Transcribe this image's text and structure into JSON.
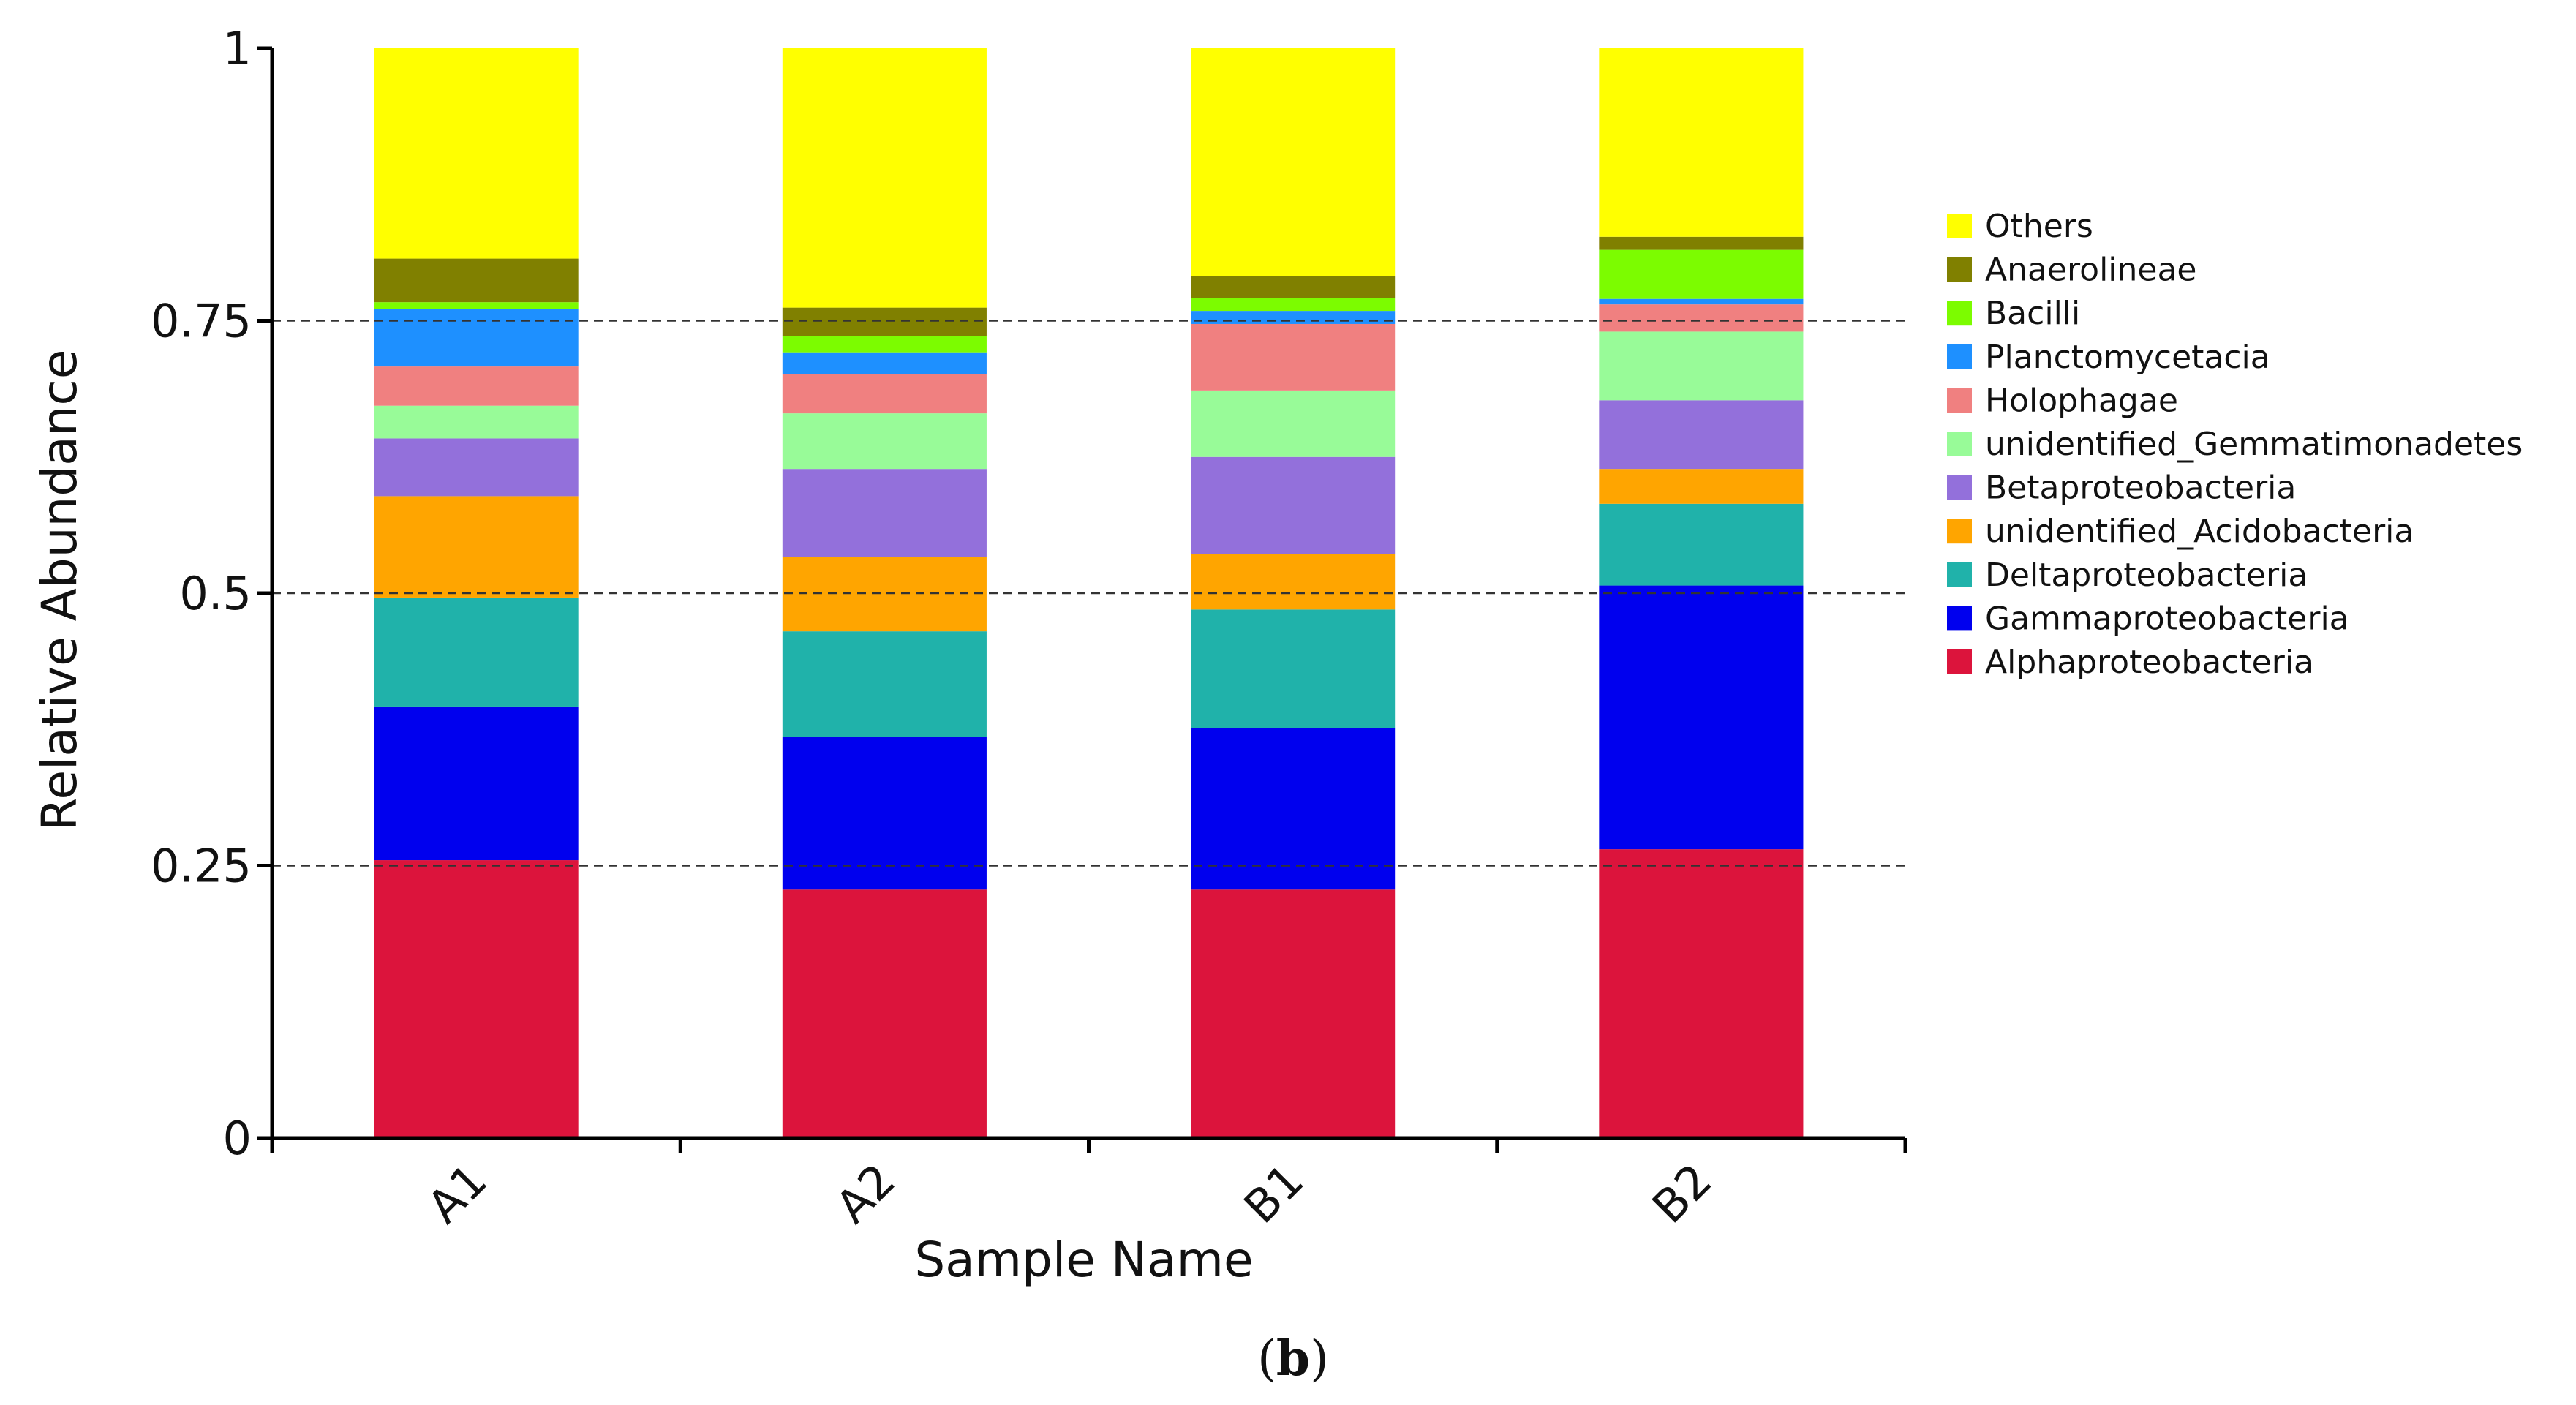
{
  "chart_data": {
    "type": "bar",
    "stacked": true,
    "title": "",
    "xlabel": "Sample Name",
    "ylabel": "Relative Abundance",
    "ylim": [
      0,
      1
    ],
    "yticks": [
      0,
      0.25,
      0.5,
      0.75,
      1
    ],
    "ytick_labels": [
      "0",
      "0.25",
      "0.5",
      "0.75",
      "1"
    ],
    "grid": "dashed horizontal lines at 0.25, 0.5, 0.75",
    "legend_position": "right",
    "categories": [
      "A1",
      "A2",
      "B1",
      "B2"
    ],
    "series": [
      {
        "name": "Alphaproteobacteria",
        "color": "#DC143C",
        "values": [
          0.255,
          0.228,
          0.228,
          0.265
        ]
      },
      {
        "name": "Gammaproteobacteria",
        "color": "#0000EE",
        "values": [
          0.141,
          0.14,
          0.148,
          0.242
        ]
      },
      {
        "name": "Deltaproteobacteria",
        "color": "#20B2AA",
        "values": [
          0.1,
          0.097,
          0.109,
          0.075
        ]
      },
      {
        "name": "unidentified_Acidobacteria",
        "color": "#FFA500",
        "values": [
          0.093,
          0.068,
          0.051,
          0.032
        ]
      },
      {
        "name": "Betaproteobacteria",
        "color": "#9370DB",
        "values": [
          0.053,
          0.081,
          0.089,
          0.063
        ]
      },
      {
        "name": "unidentified_Gemmatimonadetes",
        "color": "#98FB98",
        "values": [
          0.03,
          0.051,
          0.061,
          0.063
        ]
      },
      {
        "name": "Holophagae",
        "color": "#F08080",
        "values": [
          0.036,
          0.036,
          0.061,
          0.025
        ]
      },
      {
        "name": "Planctomycetacia",
        "color": "#1E90FF",
        "values": [
          0.053,
          0.02,
          0.012,
          0.005
        ]
      },
      {
        "name": "Bacilli",
        "color": "#7CFC00",
        "values": [
          0.006,
          0.015,
          0.012,
          0.045
        ]
      },
      {
        "name": "Anaerolineae",
        "color": "#808000",
        "values": [
          0.04,
          0.026,
          0.02,
          0.012
        ]
      },
      {
        "name": "Others",
        "color": "#FFFF00",
        "values": [
          0.193,
          0.238,
          0.209,
          0.173
        ]
      }
    ],
    "legend_order": [
      "Others",
      "Anaerolineae",
      "Bacilli",
      "Planctomycetacia",
      "Holophagae",
      "unidentified_Gemmatimonadetes",
      "Betaproteobacteria",
      "unidentified_Acidobacteria",
      "Deltaproteobacteria",
      "Gammaproteobacteria",
      "Alphaproteobacteria"
    ]
  },
  "figure_label": {
    "open": "(",
    "letter": "b",
    "close": ")"
  }
}
